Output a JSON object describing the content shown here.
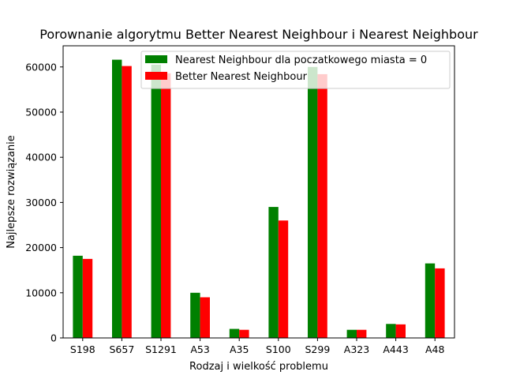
{
  "chart_data": {
    "type": "bar",
    "title": "Porownanie algorytmu Better Nearest Neighbour i Nearest Neighbour",
    "xlabel": "Rodzaj i wielkość problemu",
    "ylabel": "Najlepsze rozwiązanie",
    "categories": [
      "S198",
      "S657",
      "S1291",
      "A53",
      "A35",
      "S100",
      "S299",
      "A323",
      "A443",
      "A48"
    ],
    "series": [
      {
        "name": "Nearest Neighbour dla poczatkowego miasta = 0",
        "color": "#008000",
        "values": [
          18200,
          61600,
          60500,
          10000,
          2000,
          29000,
          60000,
          1800,
          3100,
          16500
        ]
      },
      {
        "name": "Better Nearest Neighbour",
        "color": "#ff0000",
        "values": [
          17500,
          60200,
          58600,
          9000,
          1800,
          26000,
          58400,
          1800,
          3000,
          15400
        ]
      }
    ],
    "ylim": [
      0,
      64680
    ],
    "yticks": [
      0,
      10000,
      20000,
      30000,
      40000,
      50000,
      60000
    ],
    "grid": false,
    "legend_position": "upper-right"
  }
}
